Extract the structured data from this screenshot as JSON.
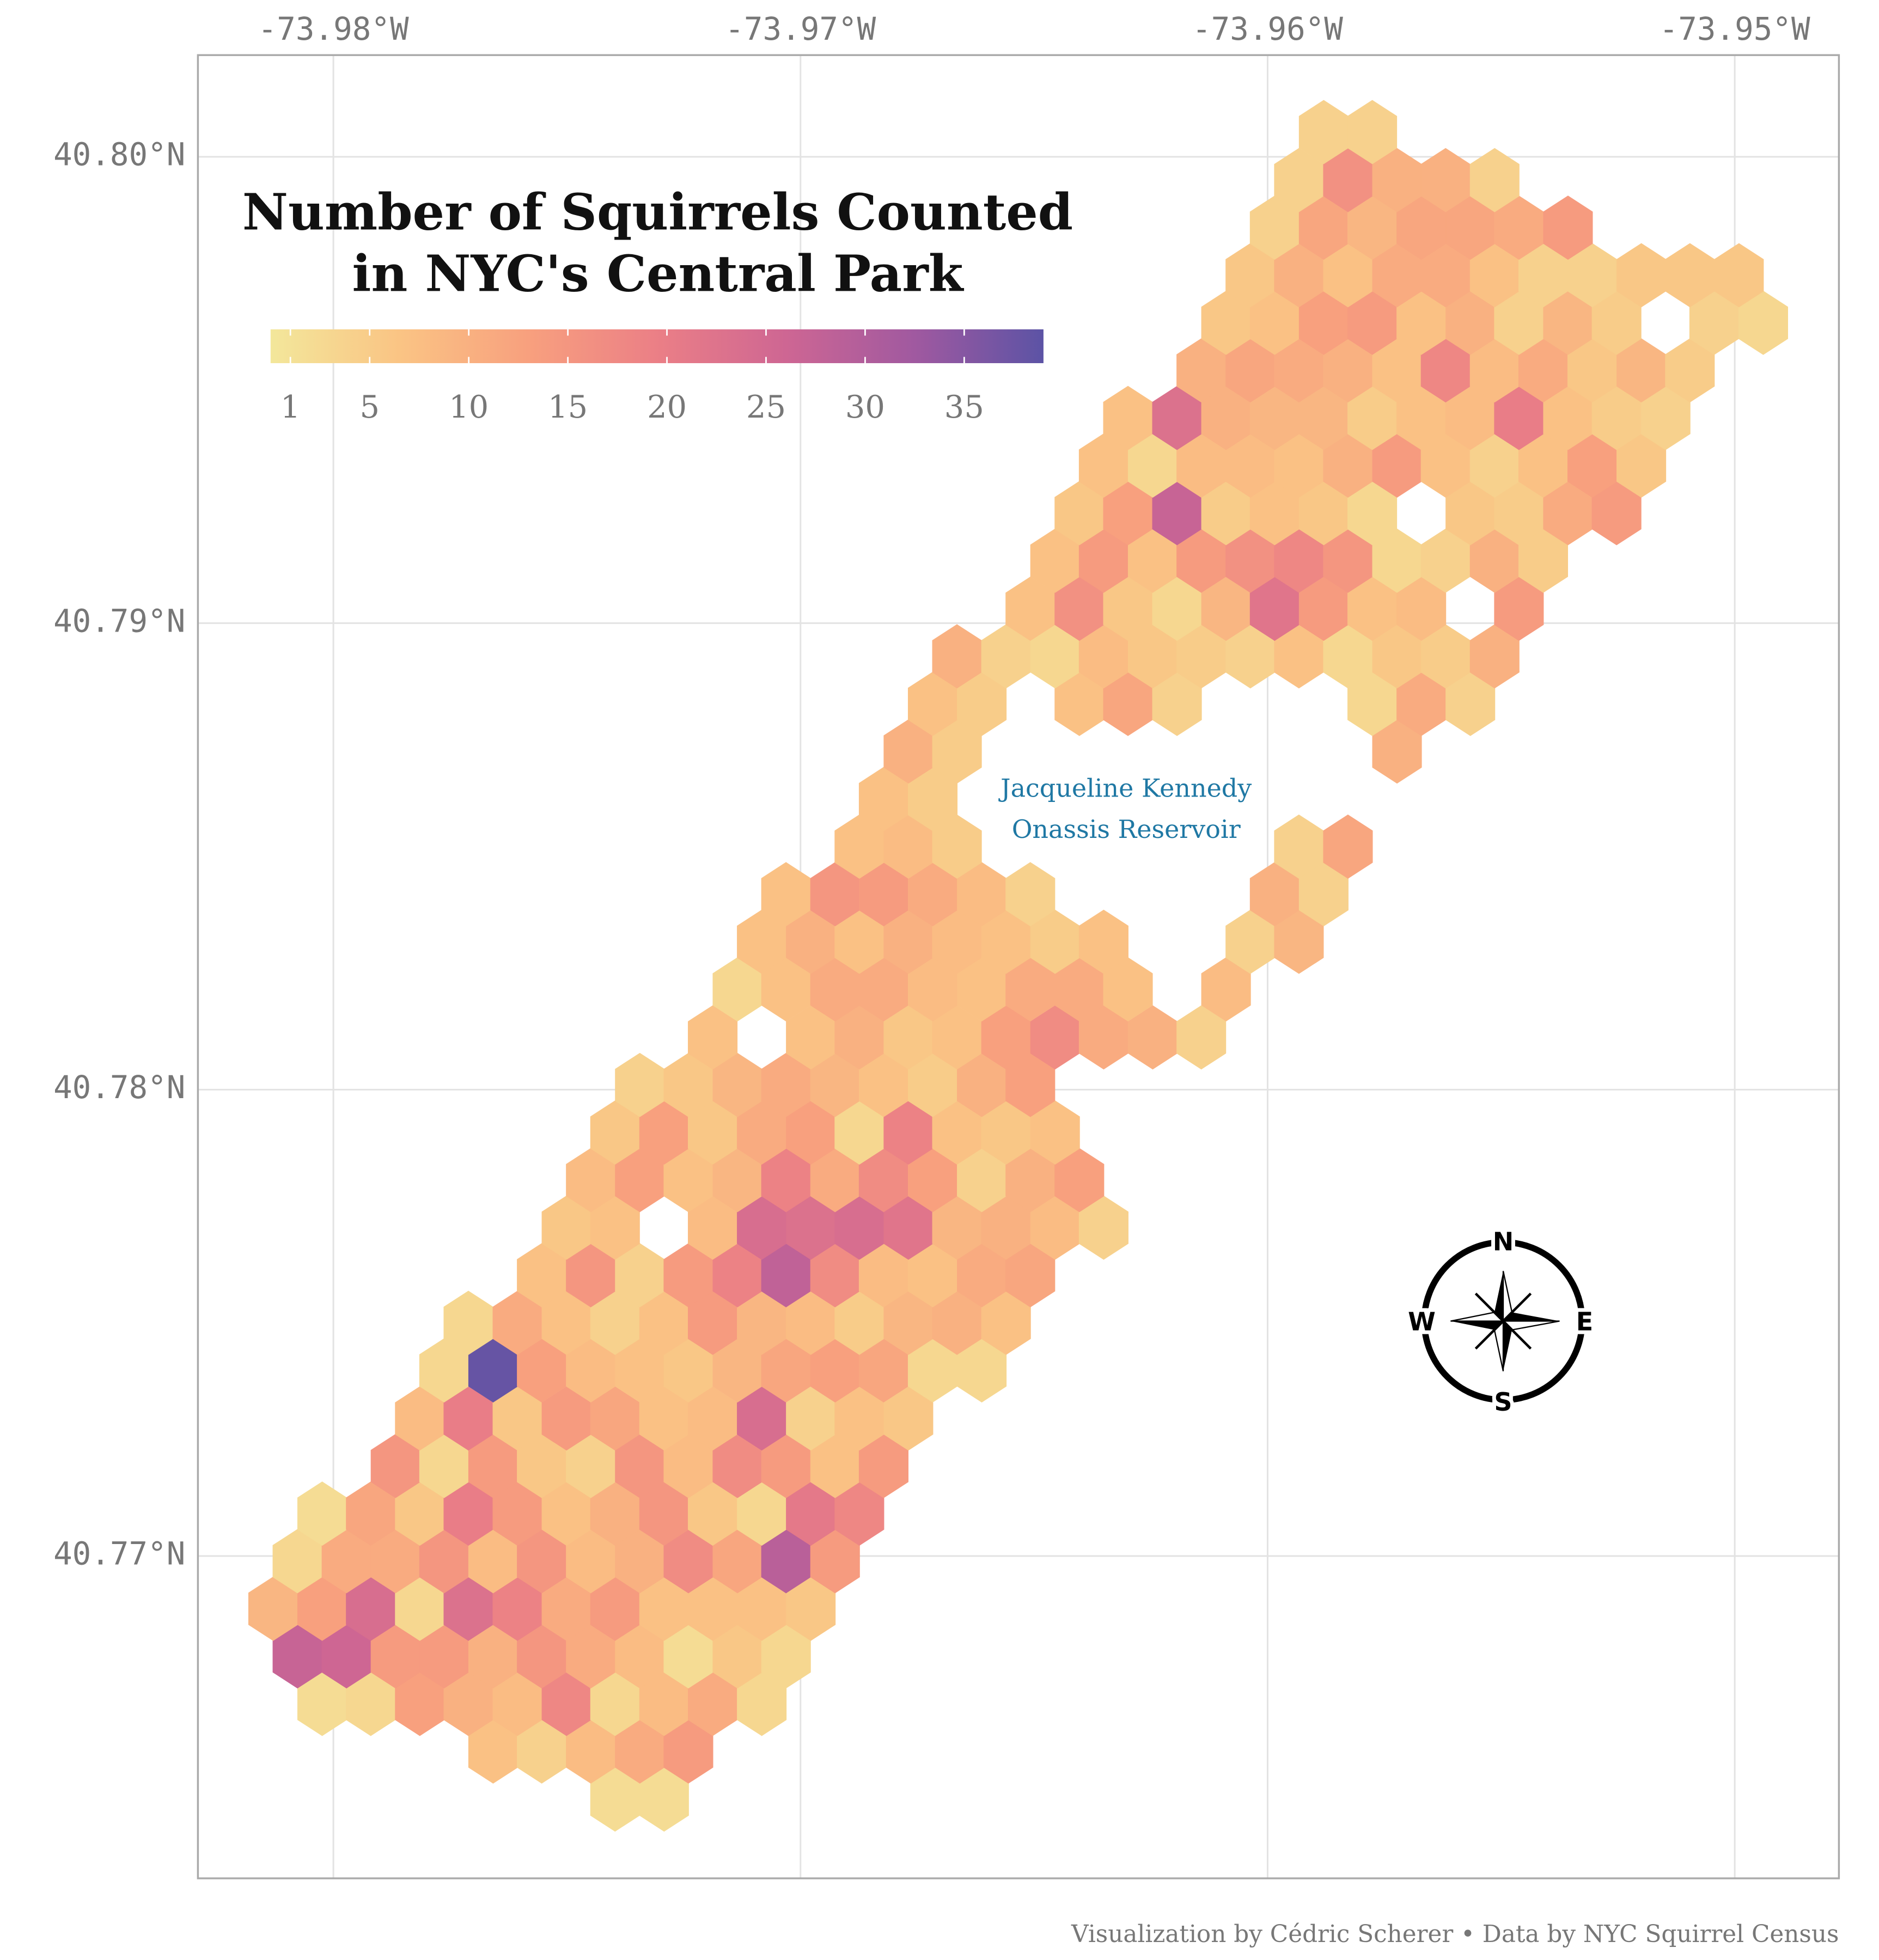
{
  "chart_data": {
    "type": "hexbin",
    "title": [
      "Number of Squirrels Counted",
      "in NYC's Central Park"
    ],
    "caption": "Visualization by Cédric Scherer • Data by NYC Squirrel Census",
    "annotation": [
      "Jacqueline Kennedy",
      "Onassis Reservoir"
    ],
    "compass": [
      "N",
      "E",
      "S",
      "W"
    ],
    "xlim": [
      -73.9829,
      -73.94777
    ],
    "ylim": [
      40.76309,
      40.80218
    ],
    "xticks": [
      {
        "value": -73.98,
        "label": "-73.98°W"
      },
      {
        "value": -73.97,
        "label": "-73.97°W"
      },
      {
        "value": -73.96,
        "label": "-73.96°W"
      },
      {
        "value": -73.95,
        "label": "-73.95°W"
      }
    ],
    "yticks": [
      {
        "value": 40.77,
        "label": "40.77°N"
      },
      {
        "value": 40.78,
        "label": "40.78°N"
      },
      {
        "value": 40.79,
        "label": "40.79°N"
      },
      {
        "value": 40.8,
        "label": "40.80°N"
      }
    ],
    "grid": true,
    "colorbar": {
      "colors": [
        "#F3E79B",
        "#FAC484",
        "#F8A07E",
        "#EB7F86",
        "#CE6693",
        "#A059A0",
        "#5C53A5"
      ],
      "limits": [
        0,
        39
      ],
      "ticks": [
        1,
        5,
        10,
        15,
        20,
        25,
        30,
        35
      ]
    },
    "rows": [
      {
        "lat": 40.76478,
        "lon": [
          -73.97397,
          -73.97292
        ],
        "values": [
          2,
          2
        ]
      },
      {
        "lat": 40.76581,
        "lon": [
          -73.97658,
          -73.97554,
          -73.97449,
          -73.97344,
          -73.9724
        ],
        "values": [
          7,
          4,
          8,
          11,
          14
        ]
      },
      {
        "lat": 40.76683,
        "lon": [
          -73.98024,
          -73.9792,
          -73.97815,
          -73.97711,
          -73.97606,
          -73.97501,
          -73.97397,
          -73.97292,
          -73.97188,
          -73.97083
        ],
        "values": [
          2,
          3,
          13,
          10,
          8,
          18,
          3,
          8,
          11,
          3
        ]
      },
      {
        "lat": 40.76785,
        "lon": [
          -73.98077,
          -73.97972,
          -73.97867,
          -73.97763,
          -73.97658,
          -73.97554,
          -73.97449,
          -73.97344,
          -73.9724,
          -73.97135,
          -73.97031
        ],
        "values": [
          27,
          26,
          14,
          14,
          10,
          15,
          11,
          8,
          2,
          6,
          3
        ]
      },
      {
        "lat": 40.76887,
        "lon": [
          -73.98129,
          -73.98024,
          -73.9792,
          -73.97815,
          -73.97711,
          -73.97606,
          -73.97501,
          -73.97397,
          -73.97292,
          -73.97188,
          -73.97083,
          -73.96978
        ],
        "values": [
          9,
          13,
          24,
          3,
          23,
          19,
          11,
          14,
          7,
          7,
          7,
          6
        ]
      },
      {
        "lat": 40.76989,
        "lon": [
          -73.98077,
          -73.97972,
          -73.97867,
          -73.97763,
          -73.97658,
          -73.97554,
          -73.97449,
          -73.97344,
          -73.9724,
          -73.97135,
          -73.97031,
          -73.96926
        ],
        "values": [
          3,
          11,
          11,
          15,
          8,
          15,
          8,
          10,
          17,
          12,
          29,
          14
        ]
      },
      {
        "lat": 40.77091,
        "lon": [
          -73.98024,
          -73.9792,
          -73.97815,
          -73.97711,
          -73.97606,
          -73.97501,
          -73.97397,
          -73.97292,
          -73.97188,
          -73.97083,
          -73.96978,
          -73.96874
        ],
        "values": [
          2,
          12,
          6,
          20,
          14,
          7,
          10,
          15,
          6,
          3,
          21,
          18
        ]
      },
      {
        "lat": 40.77193,
        "lon": [
          -73.97867,
          -73.97763,
          -73.97658,
          -73.97554,
          -73.97449,
          -73.97344,
          -73.9724,
          -73.97135,
          -73.97031,
          -73.96926,
          -73.96822
        ],
        "values": [
          15,
          3,
          14,
          6,
          4,
          15,
          8,
          17,
          14,
          7,
          14
        ]
      },
      {
        "lat": 40.77295,
        "lon": [
          -73.97815,
          -73.97711,
          -73.97606,
          -73.97501,
          -73.97397,
          -73.97292,
          -73.97188,
          -73.97083,
          -73.96978,
          -73.96874,
          -73.96769
        ],
        "values": [
          8,
          20,
          6,
          14,
          12,
          7,
          8,
          24,
          4,
          7,
          6
        ]
      },
      {
        "lat": 40.77398,
        "lon": [
          -73.97763,
          -73.97658,
          -73.97554,
          -73.97449,
          -73.97344,
          -73.9724,
          -73.97135,
          -73.97031,
          -73.96926,
          -73.96822,
          -73.96717,
          -73.96612
        ],
        "values": [
          3,
          38,
          13,
          8,
          7,
          6,
          9,
          12,
          13,
          12,
          3,
          3
        ]
      },
      {
        "lat": 40.775,
        "lon": [
          -73.97711,
          -73.97606,
          -73.97501,
          -73.97397,
          -73.97292,
          -73.97188,
          -73.97083,
          -73.96978,
          -73.96874,
          -73.96769,
          -73.96665,
          -73.9656
        ],
        "values": [
          3,
          11,
          7,
          4,
          7,
          14,
          9,
          8,
          5,
          9,
          10,
          7
        ]
      },
      {
        "lat": 40.77602,
        "lon": [
          -73.97554,
          -73.97449,
          -73.97344,
          -73.9724,
          -73.97135,
          -73.97031,
          -73.96926,
          -73.96822,
          -73.96717,
          -73.96612,
          -73.96508
        ],
        "values": [
          7,
          15,
          4,
          14,
          19,
          28,
          17,
          8,
          7,
          11,
          12
        ]
      },
      {
        "lat": 40.77704,
        "lon": [
          -73.97501,
          -73.97397,
          -73.97188,
          -73.97083,
          -73.96978,
          -73.96874,
          -73.96769,
          -73.96665,
          -73.9656,
          -73.96455,
          -73.96351
        ],
        "values": [
          6,
          7,
          8,
          24,
          23,
          24,
          22,
          9,
          10,
          8,
          4
        ]
      },
      {
        "lat": 40.77806,
        "lon": [
          -73.97449,
          -73.97344,
          -73.9724,
          -73.97135,
          -73.97031,
          -73.96926,
          -73.96822,
          -73.96717,
          -73.96612,
          -73.96508,
          -73.96403
        ],
        "values": [
          8,
          13,
          7,
          9,
          19,
          11,
          17,
          13,
          4,
          10,
          13
        ]
      },
      {
        "lat": 40.77908,
        "lon": [
          -73.97397,
          -73.97292,
          -73.97188,
          -73.97083,
          -73.96978,
          -73.96874,
          -73.96769,
          -73.96665,
          -73.9656,
          -73.96455
        ],
        "values": [
          6,
          13,
          6,
          11,
          13,
          3,
          19,
          7,
          6,
          7
        ]
      },
      {
        "lat": 40.7801,
        "lon": [
          -73.97344,
          -73.9724,
          -73.97135,
          -73.97031,
          -73.96926,
          -73.96822,
          -73.96717,
          -73.96612,
          -73.96508
        ],
        "values": [
          4,
          6,
          9,
          11,
          9,
          7,
          5,
          10,
          13
        ]
      },
      {
        "lat": 40.78112,
        "lon": [
          -73.97188,
          -73.96978,
          -73.96874,
          -73.96769,
          -73.96665,
          -73.9656,
          -73.96455,
          -73.96351,
          -73.96246,
          -73.96142
        ],
        "values": [
          7,
          7,
          10,
          6,
          7,
          13,
          17,
          11,
          10,
          4
        ]
      },
      {
        "lat": 40.78215,
        "lon": [
          -73.97135,
          -73.97031,
          -73.96926,
          -73.96822,
          -73.96717,
          -73.96612,
          -73.96508,
          -73.96403,
          -73.96299,
          -73.96089
        ],
        "values": [
          3,
          7,
          11,
          11,
          8,
          7,
          11,
          11,
          7,
          8
        ]
      },
      {
        "lat": 40.78317,
        "lon": [
          -73.97083,
          -73.96978,
          -73.96874,
          -73.96769,
          -73.96665,
          -73.9656,
          -73.96455,
          -73.96351,
          -73.96037,
          -73.95933
        ],
        "values": [
          7,
          10,
          7,
          10,
          8,
          7,
          5,
          7,
          4,
          9
        ]
      },
      {
        "lat": 40.78419,
        "lon": [
          -73.97031,
          -73.96926,
          -73.96822,
          -73.96717,
          -73.96612,
          -73.96508,
          -73.95985,
          -73.9588
        ],
        "values": [
          7,
          15,
          14,
          11,
          8,
          4,
          10,
          4
        ]
      },
      {
        "lat": 40.78521,
        "lon": [
          -73.96874,
          -73.96769,
          -73.96665,
          -73.95933,
          -73.95828
        ],
        "values": [
          7,
          8,
          5,
          4,
          12
        ]
      },
      {
        "lat": 40.78623,
        "lon": [
          -73.96822,
          -73.96717
        ],
        "values": [
          7,
          5
        ]
      },
      {
        "lat": 40.78725,
        "lon": [
          -73.96769,
          -73.96665,
          -73.95723
        ],
        "values": [
          10,
          5,
          10
        ]
      },
      {
        "lat": 40.78827,
        "lon": [
          -73.96717,
          -73.96612,
          -73.96403,
          -73.96299,
          -73.96194,
          -73.95776,
          -73.95671,
          -73.95566
        ],
        "values": [
          7,
          5,
          7,
          12,
          4,
          3,
          11,
          4
        ]
      },
      {
        "lat": 40.78929,
        "lon": [
          -73.96665,
          -73.9656,
          -73.96455,
          -73.96351,
          -73.96246,
          -73.96142,
          -73.96037,
          -73.95933,
          -73.95828,
          -73.95723,
          -73.95619,
          -73.95514
        ],
        "values": [
          10,
          4,
          3,
          8,
          6,
          5,
          4,
          7,
          3,
          6,
          5,
          10
        ]
      },
      {
        "lat": 40.79031,
        "lon": [
          -73.96508,
          -73.96403,
          -73.96299,
          -73.96194,
          -73.96089,
          -73.95985,
          -73.9588,
          -73.95776,
          -73.95671,
          -73.95462
        ],
        "values": [
          7,
          16,
          6,
          3,
          9,
          22,
          14,
          7,
          8,
          14
        ]
      },
      {
        "lat": 40.79134,
        "lon": [
          -73.96455,
          -73.96351,
          -73.96246,
          -73.96142,
          -73.96037,
          -73.95933,
          -73.95828,
          -73.95723,
          -73.95619,
          -73.95514,
          -73.9541
        ],
        "values": [
          7,
          14,
          7,
          14,
          16,
          18,
          15,
          3,
          4,
          10,
          5
        ]
      },
      {
        "lat": 40.79236,
        "lon": [
          -73.96403,
          -73.96299,
          -73.96194,
          -73.96089,
          -73.95985,
          -73.9588,
          -73.95776,
          -73.95566,
          -73.95462,
          -73.95357,
          -73.95253
        ],
        "values": [
          6,
          13,
          27,
          5,
          7,
          6,
          3,
          6,
          5,
          11,
          14
        ]
      },
      {
        "lat": 40.79338,
        "lon": [
          -73.96351,
          -73.96246,
          -73.96142,
          -73.96037,
          -73.95933,
          -73.95828,
          -73.95723,
          -73.95619,
          -73.95514,
          -73.9541,
          -73.95305,
          -73.952
        ],
        "values": [
          7,
          3,
          8,
          8,
          7,
          10,
          14,
          7,
          4,
          7,
          13,
          6
        ]
      },
      {
        "lat": 40.7944,
        "lon": [
          -73.96299,
          -73.96194,
          -73.96089,
          -73.95985,
          -73.9588,
          -73.95776,
          -73.95671,
          -73.95566,
          -73.95462,
          -73.95357,
          -73.95253,
          -73.95148
        ],
        "values": [
          7,
          23,
          10,
          9,
          9,
          5,
          7,
          8,
          20,
          7,
          5,
          4
        ]
      },
      {
        "lat": 40.79542,
        "lon": [
          -73.96142,
          -73.96037,
          -73.95933,
          -73.95828,
          -73.95723,
          -73.95619,
          -73.95514,
          -73.9541,
          -73.95305,
          -73.952,
          -73.95096
        ],
        "values": [
          10,
          12,
          11,
          10,
          7,
          18,
          8,
          11,
          6,
          9,
          5
        ]
      },
      {
        "lat": 40.79644,
        "lon": [
          -73.96089,
          -73.95985,
          -73.9588,
          -73.95776,
          -73.95671,
          -73.95566,
          -73.95462,
          -73.95357,
          -73.95253,
          -73.95044,
          -73.94939
        ],
        "values": [
          6,
          7,
          13,
          14,
          7,
          10,
          4,
          9,
          5,
          4,
          3
        ]
      },
      {
        "lat": 40.79746,
        "lon": [
          -73.96037,
          -73.95933,
          -73.95828,
          -73.95723,
          -73.95619,
          -73.95514,
          -73.9541,
          -73.95305,
          -73.952,
          -73.95096,
          -73.94991
        ],
        "values": [
          6,
          10,
          7,
          11,
          11,
          7,
          4,
          4,
          6,
          6,
          6
        ]
      },
      {
        "lat": 40.79848,
        "lon": [
          -73.95985,
          -73.9588,
          -73.95776,
          -73.95671,
          -73.95566,
          -73.95462,
          -73.95357
        ],
        "values": [
          4,
          12,
          9,
          12,
          12,
          11,
          14
        ]
      },
      {
        "lat": 40.7995,
        "lon": [
          -73.95933,
          -73.95828,
          -73.95723,
          -73.95619,
          -73.95514
        ],
        "values": [
          4,
          16,
          10,
          10,
          4
        ]
      },
      {
        "lat": 40.80053,
        "lon": [
          -73.9588,
          -73.95776
        ],
        "values": [
          4,
          4
        ]
      }
    ]
  }
}
